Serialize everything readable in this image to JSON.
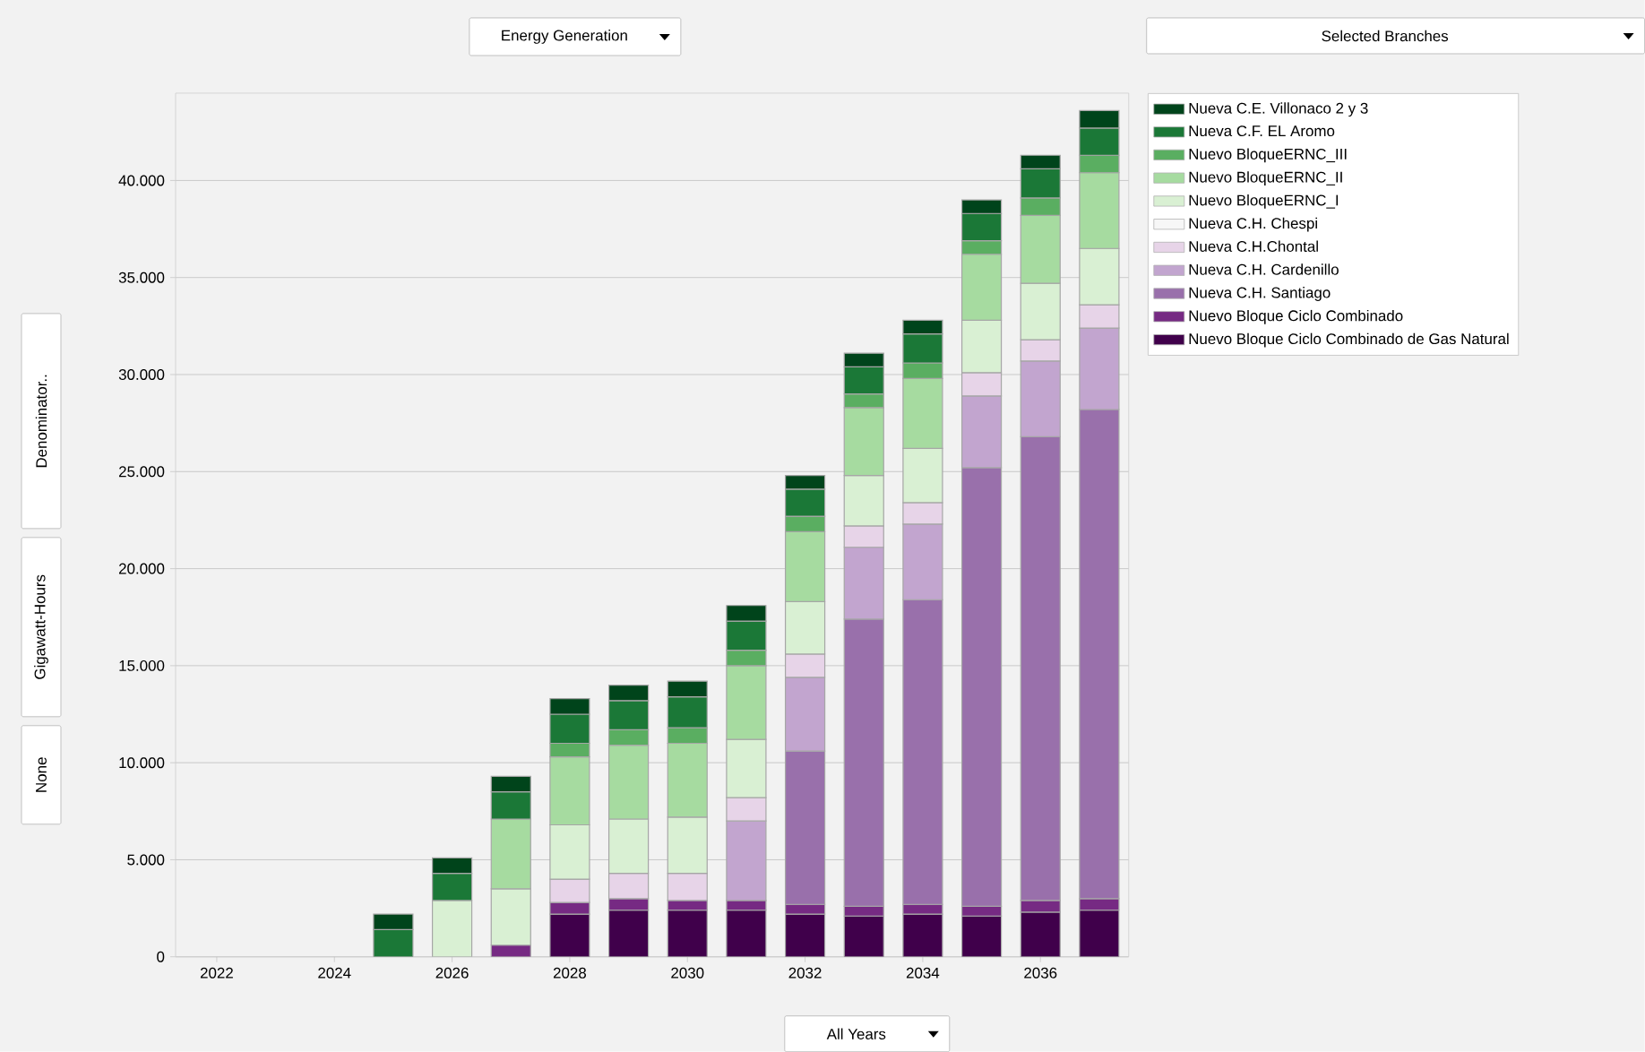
{
  "chart_data": {
    "type": "bar",
    "stacked": true,
    "title": "Energy Generation",
    "ylabel": "Gigawatt-Hours",
    "annotations": [
      "Selected Branches",
      "All Years",
      "Denominator..",
      "None"
    ],
    "x": [
      2025,
      2026,
      2027,
      2028,
      2029,
      2030,
      2031,
      2032,
      2033,
      2034,
      2035,
      2036,
      2037
    ],
    "xlim": [
      2021.3,
      2037.5
    ],
    "xticks": [
      2022,
      2024,
      2026,
      2028,
      2030,
      2032,
      2034,
      2036
    ],
    "ylim": [
      0,
      44500
    ],
    "yticks": [
      {
        "value": 0,
        "label": "0"
      },
      {
        "value": 5000,
        "label": "5.000"
      },
      {
        "value": 10000,
        "label": "10.000"
      },
      {
        "value": 15000,
        "label": "15.000"
      },
      {
        "value": 20000,
        "label": "20.000"
      },
      {
        "value": 25000,
        "label": "25.000"
      },
      {
        "value": 30000,
        "label": "30.000"
      },
      {
        "value": 35000,
        "label": "35.000"
      },
      {
        "value": 40000,
        "label": "40.000"
      }
    ],
    "grid": "y",
    "legend": "right",
    "series": [
      {
        "name": "Nuevo Bloque Ciclo Combinado de Gas Natural",
        "color": "#40004b",
        "values": [
          null,
          null,
          null,
          2200,
          2400,
          2400,
          2400,
          2200,
          2100,
          2200,
          2100,
          2300,
          2400
        ]
      },
      {
        "name": "Nuevo Bloque Ciclo Combinado",
        "color": "#762a83",
        "values": [
          null,
          null,
          600,
          600,
          600,
          500,
          500,
          500,
          500,
          500,
          500,
          600,
          600
        ]
      },
      {
        "name": "Nueva C.H.  Santiago",
        "color": "#9970ab",
        "values": [
          null,
          null,
          null,
          null,
          null,
          null,
          null,
          7900,
          14800,
          15700,
          22600,
          23900,
          25200
        ]
      },
      {
        "name": "Nueva C.H. Cardenillo",
        "color": "#c2a5cf",
        "values": [
          null,
          null,
          null,
          null,
          null,
          null,
          4100,
          3800,
          3700,
          3900,
          3700,
          3900,
          4200
        ]
      },
      {
        "name": "Nueva  C.H.Chontal",
        "color": "#e7d4e8",
        "values": [
          null,
          null,
          null,
          1200,
          1300,
          1400,
          1200,
          1200,
          1100,
          1100,
          1200,
          1100,
          1200
        ]
      },
      {
        "name": "Nueva C.H.  Chespi",
        "color": "#f7f7f7",
        "values": [
          null,
          null,
          null,
          null,
          null,
          null,
          null,
          null,
          null,
          null,
          null,
          null,
          null
        ]
      },
      {
        "name": "Nuevo  BloqueERNC_I",
        "color": "#d9f0d3",
        "values": [
          null,
          2900,
          2900,
          2800,
          2800,
          2900,
          3000,
          2700,
          2600,
          2800,
          2700,
          2900,
          2900
        ]
      },
      {
        "name": "Nuevo  BloqueERNC_II",
        "color": "#a6dba0",
        "values": [
          null,
          null,
          3600,
          3500,
          3800,
          3800,
          3800,
          3600,
          3500,
          3600,
          3400,
          3500,
          3900
        ]
      },
      {
        "name": "Nuevo  BloqueERNC_III",
        "color": "#5aae61",
        "values": [
          null,
          null,
          null,
          700,
          800,
          800,
          800,
          800,
          700,
          800,
          700,
          900,
          900
        ]
      },
      {
        "name": "Nueva C.F.  EL Aromo",
        "color": "#1b7837",
        "values": [
          1400,
          1400,
          1400,
          1500,
          1500,
          1600,
          1500,
          1400,
          1400,
          1500,
          1400,
          1500,
          1400
        ]
      },
      {
        "name": "Nueva C.E. Villonaco 2 y 3",
        "color": "#00441b",
        "values": [
          800,
          800,
          800,
          800,
          800,
          800,
          800,
          700,
          700,
          700,
          700,
          700,
          900
        ]
      }
    ]
  }
}
